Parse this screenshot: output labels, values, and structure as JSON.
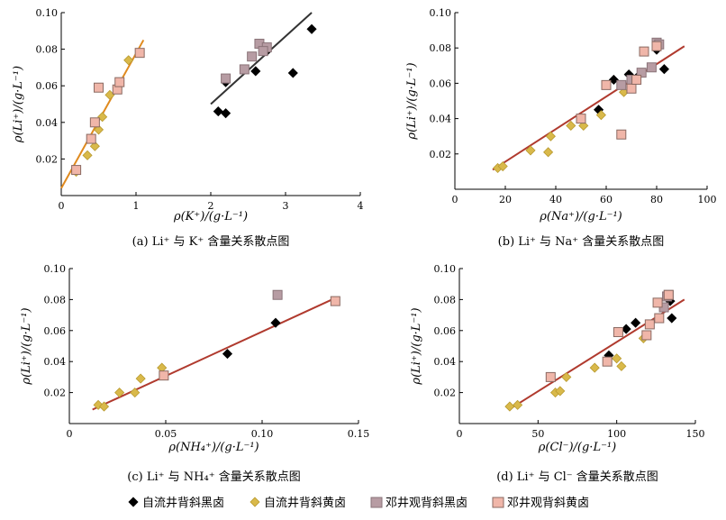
{
  "legend": [
    {
      "label": "自流井背斜黑卤",
      "marker": "diamond",
      "fill": "#000000",
      "stroke": "#000000"
    },
    {
      "label": "自流井背斜黄卤",
      "marker": "diamond",
      "fill": "#d9b94a",
      "stroke": "#b89a30"
    },
    {
      "label": "邓井观背斜黑卤",
      "marker": "square",
      "fill": "#b79ca3",
      "stroke": "#8a7378"
    },
    {
      "label": "邓井观背斜黄卤",
      "marker": "square",
      "fill": "#f0b6a9",
      "stroke": "#8a6a62"
    }
  ],
  "chart_data": [
    {
      "type": "scatter",
      "xlabel": "ρ(K⁺)/(g·L⁻¹)",
      "ylabel": "ρ(Li⁺)/(g·L⁻¹)",
      "caption": "(a) Li⁺ 与 K⁺ 含量关系散点图",
      "xlim": [
        0,
        4
      ],
      "ylim": [
        0,
        0.1
      ],
      "xticks": [
        "0",
        "1",
        "2",
        "3",
        "4"
      ],
      "yticks": [
        "0.02",
        "0.04",
        "0.06",
        "0.08",
        "0.10"
      ],
      "series": [
        {
          "points": [
            [
              2.1,
              0.046
            ],
            [
              2.2,
              0.045
            ],
            [
              2.2,
              0.062
            ],
            [
              2.6,
              0.068
            ],
            [
              2.75,
              0.079
            ],
            [
              3.1,
              0.067
            ],
            [
              3.35,
              0.091
            ]
          ]
        },
        {
          "points": [
            [
              0.2,
              0.013
            ],
            [
              0.35,
              0.022
            ],
            [
              0.45,
              0.027
            ],
            [
              0.5,
              0.036
            ],
            [
              0.55,
              0.043
            ],
            [
              0.65,
              0.055
            ],
            [
              0.75,
              0.059
            ],
            [
              0.9,
              0.074
            ]
          ]
        },
        {
          "points": [
            [
              2.2,
              0.064
            ],
            [
              2.45,
              0.069
            ],
            [
              2.55,
              0.076
            ],
            [
              2.65,
              0.083
            ],
            [
              2.75,
              0.081
            ],
            [
              2.7,
              0.079
            ]
          ]
        },
        {
          "points": [
            [
              0.2,
              0.014
            ],
            [
              0.4,
              0.031
            ],
            [
              0.45,
              0.04
            ],
            [
              0.5,
              0.059
            ],
            [
              0.75,
              0.058
            ],
            [
              0.78,
              0.062
            ],
            [
              1.05,
              0.078
            ]
          ]
        }
      ],
      "fit_lines": [
        {
          "color": "#e08a1e",
          "from": [
            0.0,
            0.004
          ],
          "to": [
            1.1,
            0.085
          ]
        },
        {
          "color": "#333333",
          "from": [
            2.0,
            0.05
          ],
          "to": [
            3.35,
            0.1
          ]
        }
      ]
    },
    {
      "type": "scatter",
      "xlabel": "ρ(Na⁺)/(g·L⁻¹)",
      "ylabel": "ρ(Li⁺)/(g·L⁻¹)",
      "caption": "(b) Li⁺ 与 Na⁺ 含量关系散点图",
      "xlim": [
        0,
        100
      ],
      "ylim": [
        0,
        0.1
      ],
      "xticks": [
        "0",
        "20",
        "40",
        "60",
        "80",
        "100"
      ],
      "yticks": [
        "0.02",
        "0.04",
        "0.06",
        "0.08",
        "0.10"
      ],
      "series": [
        {
          "points": [
            [
              57,
              0.045
            ],
            [
              63,
              0.062
            ],
            [
              69,
              0.065
            ],
            [
              72,
              0.063
            ],
            [
              80,
              0.079
            ],
            [
              83,
              0.068
            ]
          ]
        },
        {
          "points": [
            [
              17,
              0.012
            ],
            [
              19,
              0.013
            ],
            [
              30,
              0.022
            ],
            [
              37,
              0.021
            ],
            [
              38,
              0.03
            ],
            [
              46,
              0.036
            ],
            [
              51,
              0.036
            ],
            [
              58,
              0.042
            ],
            [
              67,
              0.055
            ]
          ]
        },
        {
          "points": [
            [
              66,
              0.059
            ],
            [
              70,
              0.062
            ],
            [
              74,
              0.066
            ],
            [
              78,
              0.069
            ],
            [
              80,
              0.083
            ],
            [
              81,
              0.082
            ]
          ]
        },
        {
          "points": [
            [
              50,
              0.04
            ],
            [
              60,
              0.059
            ],
            [
              66,
              0.031
            ],
            [
              70,
              0.057
            ],
            [
              72,
              0.062
            ],
            [
              75,
              0.078
            ],
            [
              80,
              0.081
            ]
          ]
        }
      ],
      "fit_lines": [
        {
          "color": "#b03a2e",
          "from": [
            15,
            0.011
          ],
          "to": [
            91,
            0.081
          ]
        }
      ]
    },
    {
      "type": "scatter",
      "xlabel": "ρ(NH₄⁺)/(g·L⁻¹)",
      "ylabel": "ρ(Li⁺)/(g·L⁻¹)",
      "caption": "(c) Li⁺ 与 NH₄⁺ 含量关系散点图",
      "xlim": [
        0,
        0.15
      ],
      "ylim": [
        0,
        0.1
      ],
      "xticks": [
        "0",
        "0.05",
        "0.10",
        "0.15"
      ],
      "yticks": [
        "0.02",
        "0.04",
        "0.06",
        "0.08",
        "0.10"
      ],
      "series": [
        {
          "points": [
            [
              0.082,
              0.045
            ],
            [
              0.107,
              0.065
            ]
          ]
        },
        {
          "points": [
            [
              0.015,
              0.012
            ],
            [
              0.018,
              0.011
            ],
            [
              0.026,
              0.02
            ],
            [
              0.034,
              0.02
            ],
            [
              0.037,
              0.029
            ],
            [
              0.048,
              0.036
            ]
          ]
        },
        {
          "points": [
            [
              0.108,
              0.083
            ]
          ]
        },
        {
          "points": [
            [
              0.049,
              0.031
            ],
            [
              0.138,
              0.079
            ]
          ]
        }
      ],
      "fit_lines": [
        {
          "color": "#b03a2e",
          "from": [
            0.012,
            0.009
          ],
          "to": [
            0.138,
            0.081
          ]
        }
      ]
    },
    {
      "type": "scatter",
      "xlabel": "ρ(Cl⁻)/(g·L⁻¹)",
      "ylabel": "ρ(Li⁺)/(g·L⁻¹)",
      "caption": "(d) Li⁺ 与 Cl⁻ 含量关系散点图",
      "xlim": [
        0,
        150
      ],
      "ylim": [
        0,
        0.1
      ],
      "xticks": [
        "0",
        "50",
        "100",
        "150"
      ],
      "yticks": [
        "0.02",
        "0.04",
        "0.06",
        "0.08",
        "0.10"
      ],
      "series": [
        {
          "points": [
            [
              95,
              0.044
            ],
            [
              106,
              0.061
            ],
            [
              112,
              0.065
            ],
            [
              134,
              0.079
            ],
            [
              135,
              0.068
            ]
          ]
        },
        {
          "points": [
            [
              32,
              0.011
            ],
            [
              37,
              0.012
            ],
            [
              61,
              0.02
            ],
            [
              64,
              0.021
            ],
            [
              68,
              0.03
            ],
            [
              86,
              0.036
            ],
            [
              100,
              0.042
            ],
            [
              103,
              0.037
            ],
            [
              117,
              0.055
            ]
          ]
        },
        {
          "points": [
            [
              130,
              0.075
            ],
            [
              132,
              0.082
            ],
            [
              133,
              0.083
            ]
          ]
        },
        {
          "points": [
            [
              58,
              0.03
            ],
            [
              94,
              0.04
            ],
            [
              101,
              0.059
            ],
            [
              119,
              0.057
            ],
            [
              121,
              0.064
            ],
            [
              126,
              0.078
            ],
            [
              127,
              0.068
            ],
            [
              133,
              0.083
            ]
          ]
        }
      ],
      "fit_lines": [
        {
          "color": "#b03a2e",
          "from": [
            33,
            0.01
          ],
          "to": [
            143,
            0.08
          ]
        }
      ]
    }
  ]
}
